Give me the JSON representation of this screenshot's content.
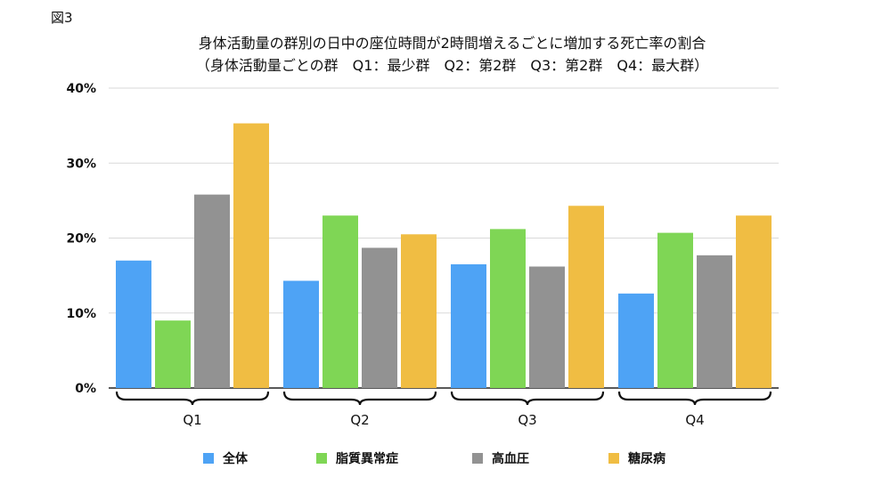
{
  "figure_label": "図3",
  "chart_data": {
    "type": "bar",
    "title": "身体活動量の群別の日中の座位時間が2時間増えるごとに増加する死亡率の割合",
    "subtitle": "（身体活動量ごとの群　Q1：最少群　Q2：第2群　Q3：第2群　Q4：最大群）",
    "categories": [
      "Q1",
      "Q2",
      "Q3",
      "Q4"
    ],
    "series": [
      {
        "name": "全体",
        "color": "#4ea3f5",
        "values": [
          17,
          14.3,
          16.5,
          12.6
        ]
      },
      {
        "name": "脂質異常症",
        "color": "#7fd655",
        "values": [
          9,
          23,
          21.2,
          20.7
        ]
      },
      {
        "name": "高血圧",
        "color": "#929292",
        "values": [
          25.8,
          18.7,
          16.2,
          17.7
        ]
      },
      {
        "name": "糖尿病",
        "color": "#f0bd43",
        "values": [
          35.3,
          20.5,
          24.3,
          23
        ]
      }
    ],
    "y_ticks": [
      "0%",
      "10%",
      "20%",
      "30%",
      "40%"
    ],
    "ylim": [
      0,
      40
    ],
    "grid": true,
    "legend_position": "bottom"
  }
}
